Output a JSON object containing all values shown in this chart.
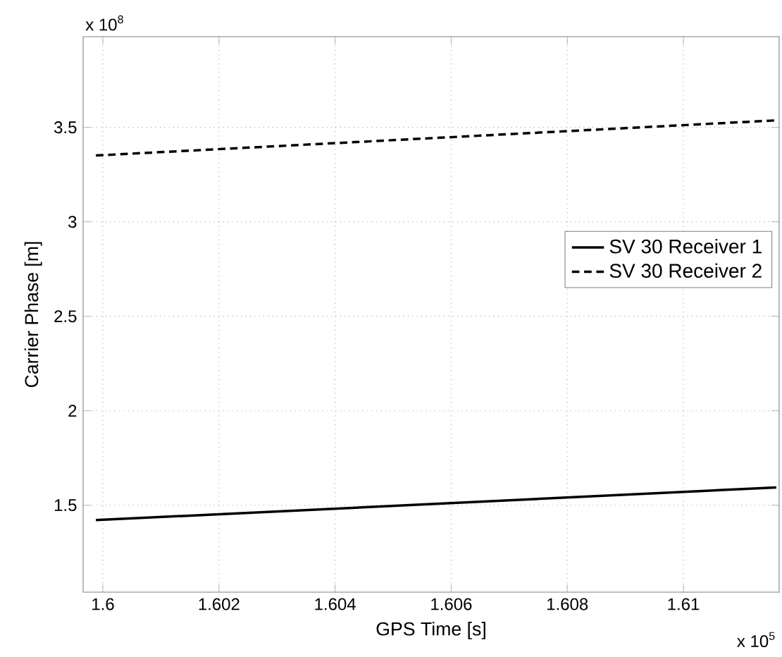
{
  "chart_data": {
    "type": "line",
    "xlabel": "GPS Time  [s]",
    "ylabel": "Carrier Phase [m]",
    "xlim": [
      1.59966,
      1.61165
    ],
    "ylim": [
      1.04,
      3.98
    ],
    "xticks": [
      1.6,
      1.602,
      1.604,
      1.606,
      1.608,
      1.61
    ],
    "yticks": [
      1.5,
      2,
      2.5,
      3,
      3.5
    ],
    "x": [
      1.59988,
      1.6116
    ],
    "series": [
      {
        "name": "SV 30 Receiver 1",
        "color": "#000000",
        "line_style": "solid",
        "values": [
          1.421,
          1.594
        ]
      },
      {
        "name": "SV 30 Receiver 2",
        "color": "#000000",
        "line_style": "dashed",
        "values": [
          3.351,
          3.537
        ]
      }
    ],
    "annotations": [
      "x 10$^{8}$",
      "x 10$^{5}$"
    ],
    "grid": true,
    "legend": "right"
  }
}
